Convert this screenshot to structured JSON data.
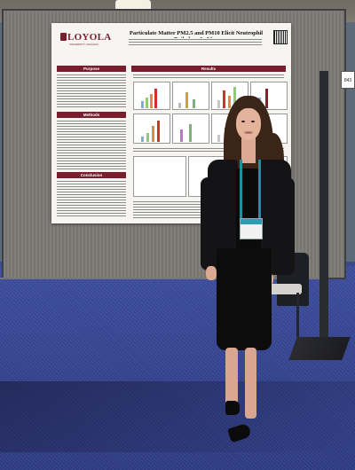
{
  "poster": {
    "logo": "LOYOLA",
    "logo_sub": "UNIVERSITY CHICAGO",
    "title": "Particulate Matter PM2.5 and PM10 Elicit Neutrophil Pathology In Vivo",
    "sections": {
      "purpose": "Purpose",
      "methods": "Methods",
      "conclusion": "Conclusion",
      "results": "Results"
    }
  },
  "booth_sign": "843"
}
